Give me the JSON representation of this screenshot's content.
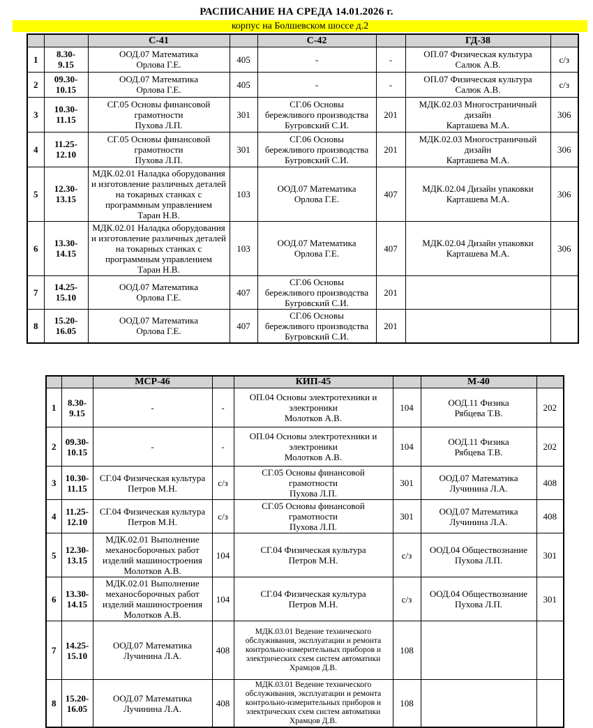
{
  "title": "РАСПИСАНИЕ НА СРЕДА 14.01.2026 г.",
  "subtitle": "корпус на Болшевском шоссе д.2",
  "colors": {
    "header_bg": "#d3d3d3",
    "highlight_bg": "#ffff00",
    "border": "#000000"
  },
  "tables": [
    {
      "name": "upper-schedule",
      "groups": [
        "С-41",
        "С-42",
        "ГД-38"
      ],
      "rows": [
        {
          "num": "1",
          "time": [
            "8.30-",
            "9.15"
          ],
          "lessons": [
            {
              "lines": [
                "ООД.07 Математика",
                "Орлова Г.Е."
              ],
              "room": "405"
            },
            {
              "lines": [
                "-"
              ],
              "room": "-"
            },
            {
              "lines": [
                "ОП.07 Физическая культура",
                "Салюк А.В."
              ],
              "room": "с/з"
            }
          ]
        },
        {
          "num": "2",
          "time": [
            "09.30-",
            "10.15"
          ],
          "lessons": [
            {
              "lines": [
                "ООД.07 Математика",
                "Орлова Г.Е."
              ],
              "room": "405"
            },
            {
              "lines": [
                "-"
              ],
              "room": "-"
            },
            {
              "lines": [
                "ОП.07 Физическая культура",
                "Салюк А.В."
              ],
              "room": "с/з"
            }
          ]
        },
        {
          "num": "3",
          "time": [
            "10.30-",
            "11.15"
          ],
          "lessons": [
            {
              "lines": [
                "СГ.05 Основы финансовой",
                "грамотности",
                "Пухова Л.П."
              ],
              "room": "301"
            },
            {
              "lines": [
                "СГ.06 Основы",
                "бережливого производства",
                "Бугровский С.И."
              ],
              "room": "201"
            },
            {
              "lines": [
                "МДК.02.03 Многостраничный",
                "дизайн",
                "Карташева М.А."
              ],
              "room": "306"
            }
          ]
        },
        {
          "num": "4",
          "time": [
            "11.25-",
            "12.10"
          ],
          "lessons": [
            {
              "lines": [
                "СГ.05 Основы финансовой",
                "грамотности",
                "Пухова Л.П."
              ],
              "room": "301"
            },
            {
              "lines": [
                "СГ.06 Основы",
                "бережливого производства",
                "Бугровский С.И."
              ],
              "room": "201"
            },
            {
              "lines": [
                "МДК.02.03 Многостраничный",
                "дизайн",
                "Карташева М.А."
              ],
              "room": "306"
            }
          ]
        },
        {
          "num": "5",
          "time": [
            "12.30-",
            "13.15"
          ],
          "lessons": [
            {
              "lines": [
                "МДК.02.01 Наладка оборудования",
                "и изготовление различных деталей",
                "на токарных станках с",
                "программным управлением",
                "Таран Н.В."
              ],
              "room": "103"
            },
            {
              "lines": [
                "ООД.07 Математика",
                "Орлова Г.Е."
              ],
              "room": "407"
            },
            {
              "lines": [
                "МДК.02.04 Дизайн упаковки",
                "Карташева М.А."
              ],
              "room": "306"
            }
          ]
        },
        {
          "num": "6",
          "time": [
            "13.30-",
            "14.15"
          ],
          "lessons": [
            {
              "lines": [
                "МДК.02.01 Наладка оборудования",
                "и изготовление различных деталей",
                "на токарных станках с",
                "программным управлением",
                "Таран Н.В."
              ],
              "room": "103"
            },
            {
              "lines": [
                "ООД.07 Математика",
                "Орлова Г.Е."
              ],
              "room": "407"
            },
            {
              "lines": [
                "МДК.02.04 Дизайн упаковки",
                "Карташева М.А."
              ],
              "room": "306"
            }
          ]
        },
        {
          "num": "7",
          "time": [
            "14.25-",
            "15.10"
          ],
          "lessons": [
            {
              "lines": [
                "ООД.07 Математика",
                "Орлова Г.Е."
              ],
              "room": "407"
            },
            {
              "lines": [
                "СГ.06 Основы",
                "бережливого производства",
                "Бугровский С.И."
              ],
              "room": "201"
            },
            {
              "lines": [],
              "room": ""
            }
          ]
        },
        {
          "num": "8",
          "time": [
            "15.20-",
            "16.05"
          ],
          "lessons": [
            {
              "lines": [
                "ООД.07 Математика",
                "Орлова Г.Е."
              ],
              "room": "407"
            },
            {
              "lines": [
                "СГ.06 Основы",
                "бережливого производства",
                "Бугровский С.И."
              ],
              "room": "201"
            },
            {
              "lines": [],
              "room": ""
            }
          ]
        }
      ]
    },
    {
      "name": "lower-schedule",
      "groups": [
        "МСР-46",
        "КИП-45",
        "М-40"
      ],
      "rows": [
        {
          "num": "1",
          "time": [
            "8.30-",
            "9.15"
          ],
          "lessons": [
            {
              "lines": [
                "-"
              ],
              "room": "-"
            },
            {
              "lines": [
                "ОП.04 Основы электротехники и",
                "электроники",
                "Молотков А.В."
              ],
              "room": "104"
            },
            {
              "lines": [
                "ООД.11 Физика",
                "Рябцева Т.В."
              ],
              "room": "202"
            }
          ]
        },
        {
          "num": "2",
          "time": [
            "09.30-",
            "10.15"
          ],
          "lessons": [
            {
              "lines": [
                "-"
              ],
              "room": "-"
            },
            {
              "lines": [
                "ОП.04 Основы электротехники и",
                "электроники",
                "Молотков А.В."
              ],
              "room": "104"
            },
            {
              "lines": [
                "ООД.11 Физика",
                "Рябцева Т.В."
              ],
              "room": "202"
            }
          ]
        },
        {
          "num": "3",
          "time": [
            "10.30-",
            "11.15"
          ],
          "lessons": [
            {
              "lines": [
                "СГ.04 Физическая культура",
                "Петров М.Н."
              ],
              "room": "с/з"
            },
            {
              "lines": [
                "СГ.05 Основы финансовой",
                "грамотности",
                "Пухова Л.П."
              ],
              "room": "301"
            },
            {
              "lines": [
                "ООД.07 Математика",
                "Лучинина Л.А."
              ],
              "room": "408"
            }
          ]
        },
        {
          "num": "4",
          "time": [
            "11.25-",
            "12.10"
          ],
          "lessons": [
            {
              "lines": [
                "СГ.04 Физическая культура",
                "Петров М.Н."
              ],
              "room": "с/з"
            },
            {
              "lines": [
                "СГ.05 Основы финансовой",
                "грамотности",
                "Пухова Л.П."
              ],
              "room": "301"
            },
            {
              "lines": [
                "ООД.07 Математика",
                "Лучинина Л.А."
              ],
              "room": "408"
            }
          ]
        },
        {
          "num": "5",
          "time": [
            "12.30-",
            "13.15"
          ],
          "lessons": [
            {
              "lines": [
                "МДК.02.01 Выполнение",
                "механосборочных работ",
                "изделий машиностроения",
                "Молотков А.В."
              ],
              "room": "104"
            },
            {
              "lines": [
                "СГ.04 Физическая культура",
                "Петров М.Н."
              ],
              "room": "с/з"
            },
            {
              "lines": [
                "ООД.04 Обществознание",
                "Пухова Л.П."
              ],
              "room": "301"
            }
          ]
        },
        {
          "num": "6",
          "time": [
            "13.30-",
            "14.15"
          ],
          "lessons": [
            {
              "lines": [
                "МДК.02.01 Выполнение",
                "механосборочных работ",
                "изделий машиностроения",
                "Молотков А.В."
              ],
              "room": "104"
            },
            {
              "lines": [
                "СГ.04 Физическая культура",
                "Петров М.Н."
              ],
              "room": "с/з"
            },
            {
              "lines": [
                "ООД.04 Обществознание",
                "Пухова Л.П."
              ],
              "room": "301"
            }
          ]
        },
        {
          "num": "7",
          "time": [
            "14.25-",
            "15.10"
          ],
          "lessons": [
            {
              "lines": [
                "ООД.07 Математика",
                "Лучинина Л.А."
              ],
              "room": "408"
            },
            {
              "lines": [
                "МДК.03.01 Ведение технического",
                "обслуживания, эксплуатации и ремонта",
                "контрольно-измерительных приборов и",
                "электрических схем систем автоматики",
                "Храмцов Д.В."
              ],
              "room": "108",
              "small": true
            },
            {
              "lines": [],
              "room": ""
            }
          ]
        },
        {
          "num": "8",
          "time": [
            "15.20-",
            "16.05"
          ],
          "lessons": [
            {
              "lines": [
                "ООД.07 Математика",
                "Лучинина Л.А."
              ],
              "room": "408"
            },
            {
              "lines": [
                "МДК.03.01 Ведение технического",
                "обслуживания, эксплуатации и ремонта",
                "контрольно-измерительных приборов и",
                "электрических схем систем автоматики",
                "Храмцов Д.В."
              ],
              "room": "108",
              "small": true
            },
            {
              "lines": [],
              "room": ""
            }
          ]
        }
      ]
    }
  ]
}
